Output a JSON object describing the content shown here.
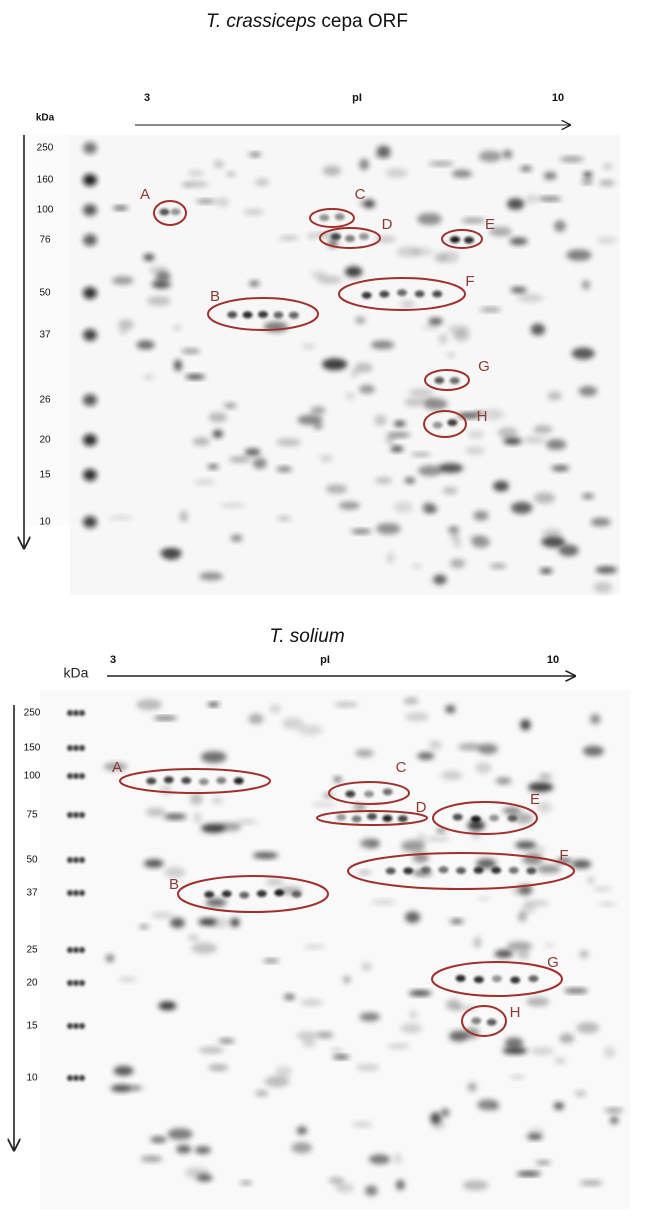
{
  "panels": [
    {
      "species": "T. crassiceps",
      "strain": "cepa ORF",
      "unit": "kDa",
      "ph_low": "3",
      "ph_label": "pI",
      "ph_high": "10",
      "markers": [
        "250",
        "160",
        "100",
        "76",
        "50",
        "37",
        "26",
        "20",
        "15",
        "10"
      ],
      "spots": [
        "A",
        "B",
        "C",
        "D",
        "E",
        "F",
        "G",
        "H"
      ]
    },
    {
      "species": "T. solium",
      "unit": "kDa",
      "ph_low": "3",
      "ph_label": "pI",
      "ph_high": "10",
      "markers": [
        "250",
        "150",
        "100",
        "75",
        "50",
        "37",
        "25",
        "20",
        "15",
        "10"
      ],
      "spots": [
        "A",
        "B",
        "C",
        "D",
        "E",
        "F",
        "G",
        "H"
      ]
    }
  ]
}
